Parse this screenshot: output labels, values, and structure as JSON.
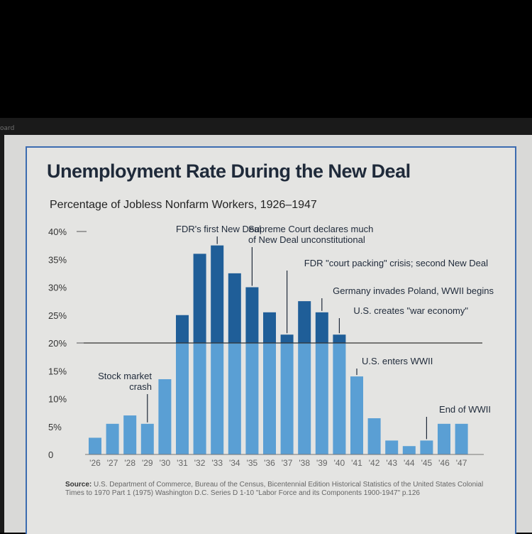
{
  "screen": {
    "corner_label": "oard"
  },
  "chart_data": {
    "type": "bar",
    "title": "Unemployment Rate During the New Deal",
    "subtitle": "Percentage of Jobless Nonfarm Workers, 1926–1947",
    "categories": [
      "'26",
      "'27",
      "'28",
      "'29",
      "'30",
      "'31",
      "'32",
      "'33",
      "'34",
      "'35",
      "'36",
      "'37",
      "'38",
      "'39",
      "'40",
      "'41",
      "'42",
      "'43",
      "'44",
      "'45",
      "'46",
      "'47"
    ],
    "values": [
      3.0,
      5.5,
      7.0,
      5.5,
      13.5,
      25.0,
      36.0,
      37.5,
      32.5,
      30.0,
      25.5,
      21.5,
      27.5,
      25.5,
      21.5,
      14.0,
      6.5,
      2.5,
      1.5,
      2.5,
      5.5,
      5.5
    ],
    "ylim": [
      0,
      40
    ],
    "yticks": [
      {
        "value": 0,
        "label": "0"
      },
      {
        "value": 5,
        "label": "5%"
      },
      {
        "value": 10,
        "label": "10%"
      },
      {
        "value": 15,
        "label": "15%"
      },
      {
        "value": 20,
        "label": "20%"
      },
      {
        "value": 25,
        "label": "25%"
      },
      {
        "value": 30,
        "label": "30%"
      },
      {
        "value": 35,
        "label": "35%"
      },
      {
        "value": 40,
        "label": "40%"
      }
    ],
    "reference_line": 20,
    "colors": {
      "above": "#1f5e98",
      "below": "#5a9fd4",
      "frame": "#3b6bb0",
      "text": "#1f2a3a"
    },
    "annotations": [
      {
        "lines": [
          "Stock market",
          "crash"
        ],
        "category": "'29"
      },
      {
        "lines": [
          "FDR's first New Deal"
        ],
        "category": "'33"
      },
      {
        "lines": [
          "Supreme Court declares much",
          "of New Deal unconstitutional"
        ],
        "category": "'35"
      },
      {
        "lines": [
          "FDR \"court packing\" crisis; second New Deal"
        ],
        "category": "'37"
      },
      {
        "lines": [
          "Germany invades Poland, WWII begins"
        ],
        "category": "'39"
      },
      {
        "lines": [
          "U.S. creates \"war economy\""
        ],
        "category": "'40"
      },
      {
        "lines": [
          "U.S. enters WWII"
        ],
        "category": "'41"
      },
      {
        "lines": [
          "End of WWII"
        ],
        "category": "'45"
      }
    ],
    "source_label": "Source:",
    "source": "U.S. Department of Commerce, Bureau of the Census, Bicentennial Edition Historical Statistics of the United States Colonial Times to 1970 Part 1 (1975) Washington D.C. Series D 1-10 \"Labor Force and its Components 1900-1947\" p.126"
  }
}
